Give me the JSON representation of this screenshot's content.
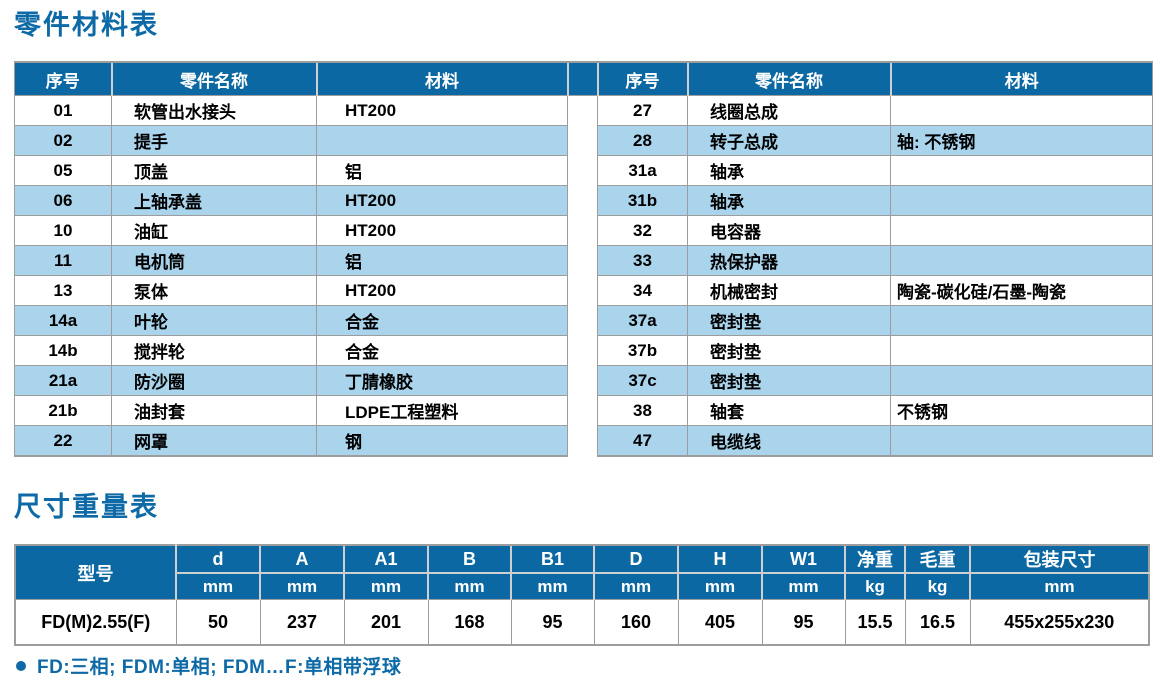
{
  "parts_table": {
    "title": "零件材料表",
    "headers": [
      "序号",
      "零件名称",
      "材料"
    ],
    "left_rows": [
      {
        "no": "01",
        "name": "软管出水接头",
        "material": "HT200"
      },
      {
        "no": "02",
        "name": "提手",
        "material": ""
      },
      {
        "no": "05",
        "name": "顶盖",
        "material": "铝"
      },
      {
        "no": "06",
        "name": "上轴承盖",
        "material": "HT200"
      },
      {
        "no": "10",
        "name": "油缸",
        "material": "HT200"
      },
      {
        "no": "11",
        "name": "电机筒",
        "material": "铝"
      },
      {
        "no": "13",
        "name": "泵体",
        "material": "HT200"
      },
      {
        "no": "14a",
        "name": "叶轮",
        "material": "合金"
      },
      {
        "no": "14b",
        "name": "搅拌轮",
        "material": "合金"
      },
      {
        "no": "21a",
        "name": "防沙圈",
        "material": "丁腈橡胶"
      },
      {
        "no": "21b",
        "name": "油封套",
        "material": "LDPE工程塑料"
      },
      {
        "no": "22",
        "name": "网罩",
        "material": "钢"
      }
    ],
    "right_rows": [
      {
        "no": "27",
        "name": "线圈总成",
        "material": ""
      },
      {
        "no": "28",
        "name": "转子总成",
        "material": "轴: 不锈钢"
      },
      {
        "no": "31a",
        "name": "轴承",
        "material": ""
      },
      {
        "no": "31b",
        "name": "轴承",
        "material": ""
      },
      {
        "no": "32",
        "name": "电容器",
        "material": ""
      },
      {
        "no": "33",
        "name": "热保护器",
        "material": ""
      },
      {
        "no": "34",
        "name": "机械密封",
        "material": "陶瓷-碳化硅/石墨-陶瓷"
      },
      {
        "no": "37a",
        "name": "密封垫",
        "material": ""
      },
      {
        "no": "37b",
        "name": "密封垫",
        "material": ""
      },
      {
        "no": "37c",
        "name": "密封垫",
        "material": ""
      },
      {
        "no": "38",
        "name": "轴套",
        "material": "不锈钢"
      },
      {
        "no": "47",
        "name": "电缆线",
        "material": ""
      }
    ]
  },
  "dimensions_table": {
    "title": "尺寸重量表",
    "model_header": "型号",
    "columns": [
      {
        "label": "d",
        "unit": "mm"
      },
      {
        "label": "A",
        "unit": "mm"
      },
      {
        "label": "A1",
        "unit": "mm"
      },
      {
        "label": "B",
        "unit": "mm"
      },
      {
        "label": "B1",
        "unit": "mm"
      },
      {
        "label": "D",
        "unit": "mm"
      },
      {
        "label": "H",
        "unit": "mm"
      },
      {
        "label": "W1",
        "unit": "mm"
      },
      {
        "label": "净重",
        "unit": "kg"
      },
      {
        "label": "毛重",
        "unit": "kg"
      },
      {
        "label": "包装尺寸",
        "unit": "mm"
      }
    ],
    "row": {
      "model": "FD(M)2.55(F)",
      "values": [
        "50",
        "237",
        "201",
        "168",
        "95",
        "160",
        "405",
        "95",
        "15.5",
        "16.5",
        "455x255x230"
      ]
    }
  },
  "footnote": "FD:三相; FDM:单相; FDM…F:单相带浮球",
  "colors": {
    "header_blue": "#0b68a2",
    "title_blue": "#0d6aa6",
    "row_blue": "#a9d4ec",
    "border_gray": "#9d9d9d",
    "header_separator": "#cfcfcf"
  }
}
